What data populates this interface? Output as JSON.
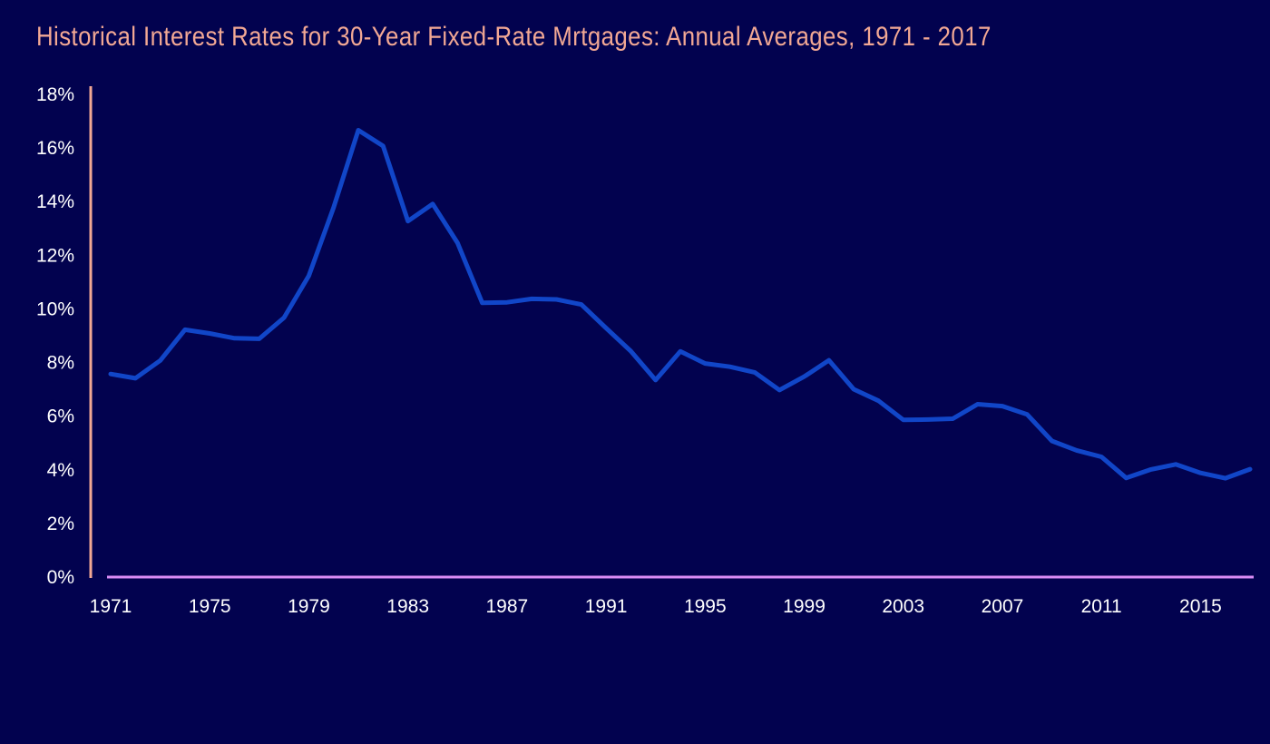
{
  "chart_data": {
    "type": "line",
    "title": "Historical Interest Rates for 30-Year Fixed-Rate Mrtgages: Annual Averages, 1971 - 2017",
    "xlabel": "",
    "ylabel": "",
    "x": [
      1971,
      1972,
      1973,
      1974,
      1975,
      1976,
      1977,
      1978,
      1979,
      1980,
      1981,
      1982,
      1983,
      1984,
      1985,
      1986,
      1987,
      1988,
      1989,
      1990,
      1991,
      1992,
      1993,
      1994,
      1995,
      1996,
      1997,
      1998,
      1999,
      2000,
      2001,
      2002,
      2003,
      2004,
      2005,
      2006,
      2007,
      2008,
      2009,
      2010,
      2011,
      2012,
      2013,
      2014,
      2015,
      2016,
      2017
    ],
    "series": [
      {
        "values": [
          7.54,
          7.38,
          8.04,
          9.19,
          9.05,
          8.87,
          8.85,
          9.64,
          11.2,
          13.74,
          16.63,
          16.04,
          13.24,
          13.88,
          12.43,
          10.19,
          10.21,
          10.34,
          10.32,
          10.13,
          9.25,
          8.39,
          7.31,
          8.38,
          7.93,
          7.81,
          7.6,
          6.94,
          7.44,
          8.05,
          6.97,
          6.54,
          5.83,
          5.84,
          5.87,
          6.41,
          6.34,
          6.03,
          5.04,
          4.69,
          4.45,
          3.66,
          3.98,
          4.17,
          3.85,
          3.65,
          3.99
        ],
        "color": "#1146c8"
      }
    ],
    "x_tick_labels": [
      "1971",
      "1975",
      "1979",
      "1983",
      "1987",
      "1991",
      "1995",
      "1999",
      "2003",
      "2007",
      "2011",
      "2015"
    ],
    "y_tick_labels": [
      "0%",
      "2%",
      "4%",
      "6%",
      "8%",
      "10%",
      "12%",
      "14%",
      "16%",
      "18%"
    ],
    "ylim": [
      0,
      18
    ],
    "xlim": [
      1971,
      2017
    ],
    "grid": false,
    "y_axis_color": "#f2a894",
    "x_axis_color": "#d98cf5",
    "title_color": "#f2a894",
    "background": "#02024f"
  }
}
